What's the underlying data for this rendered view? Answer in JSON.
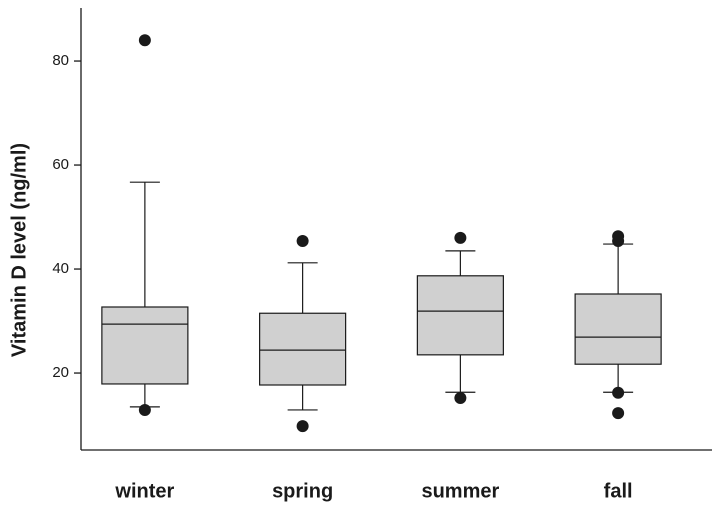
{
  "chart_data": {
    "type": "box",
    "y_label": "Vitamin D level (ng/ml)",
    "categories": [
      "winter",
      "spring",
      "summer",
      "fall"
    ],
    "boxes": [
      {
        "min": 13.5,
        "q1": 17.9,
        "median": 29.4,
        "q3": 32.7,
        "max": 56.7,
        "outliers": [
          84.0,
          12.9
        ]
      },
      {
        "min": 12.9,
        "q1": 17.7,
        "median": 24.4,
        "q3": 31.5,
        "max": 41.2,
        "outliers": [
          45.4,
          9.8
        ]
      },
      {
        "min": 16.3,
        "q1": 23.5,
        "median": 31.9,
        "q3": 38.7,
        "max": 43.5,
        "outliers": [
          46.0,
          15.2
        ]
      },
      {
        "min": 16.3,
        "q1": 21.7,
        "median": 26.9,
        "q3": 35.2,
        "max": 44.8,
        "outliers": [
          46.3,
          45.4,
          16.2,
          12.3
        ]
      }
    ],
    "color": "#d0d0d0",
    "ylim": [
      5.2,
      90.2
    ],
    "yticks": [
      20,
      40,
      60,
      80
    ],
    "grid": false
  }
}
